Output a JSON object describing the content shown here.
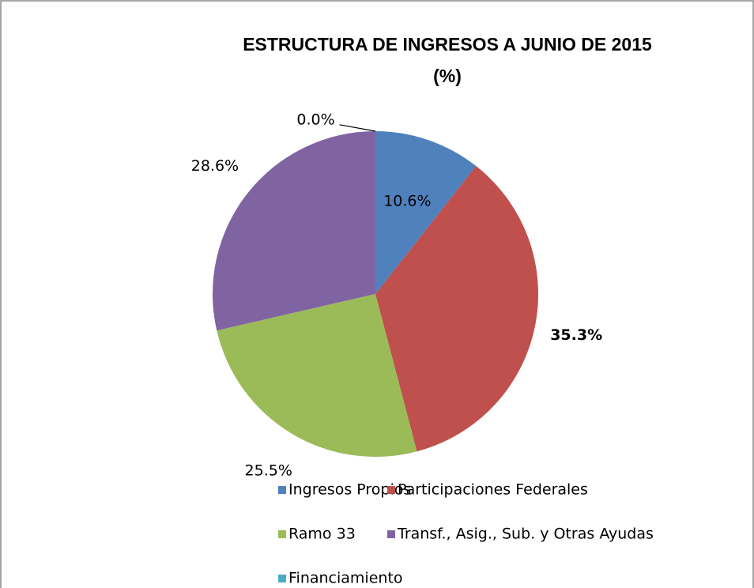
{
  "chart_data": {
    "type": "pie",
    "title": "ESTRUCTURA DE INGRESOS A JUNIO DE 2015",
    "subtitle": "(%)",
    "categories": [
      "Ingresos Propios",
      "Participaciones Federales",
      "Ramo 33",
      "Transf., Asig., Sub. y Otras Ayudas",
      "Financiamiento"
    ],
    "values": [
      10.6,
      35.3,
      25.5,
      28.6,
      0.0
    ],
    "value_labels": [
      "10.6%",
      "35.3%",
      "25.5%",
      "28.6%",
      "0.0%"
    ],
    "colors": [
      "#4f81bd",
      "#c0504d",
      "#9bbb59",
      "#8064a2",
      "#4bacc6"
    ],
    "legend": "bottom"
  }
}
